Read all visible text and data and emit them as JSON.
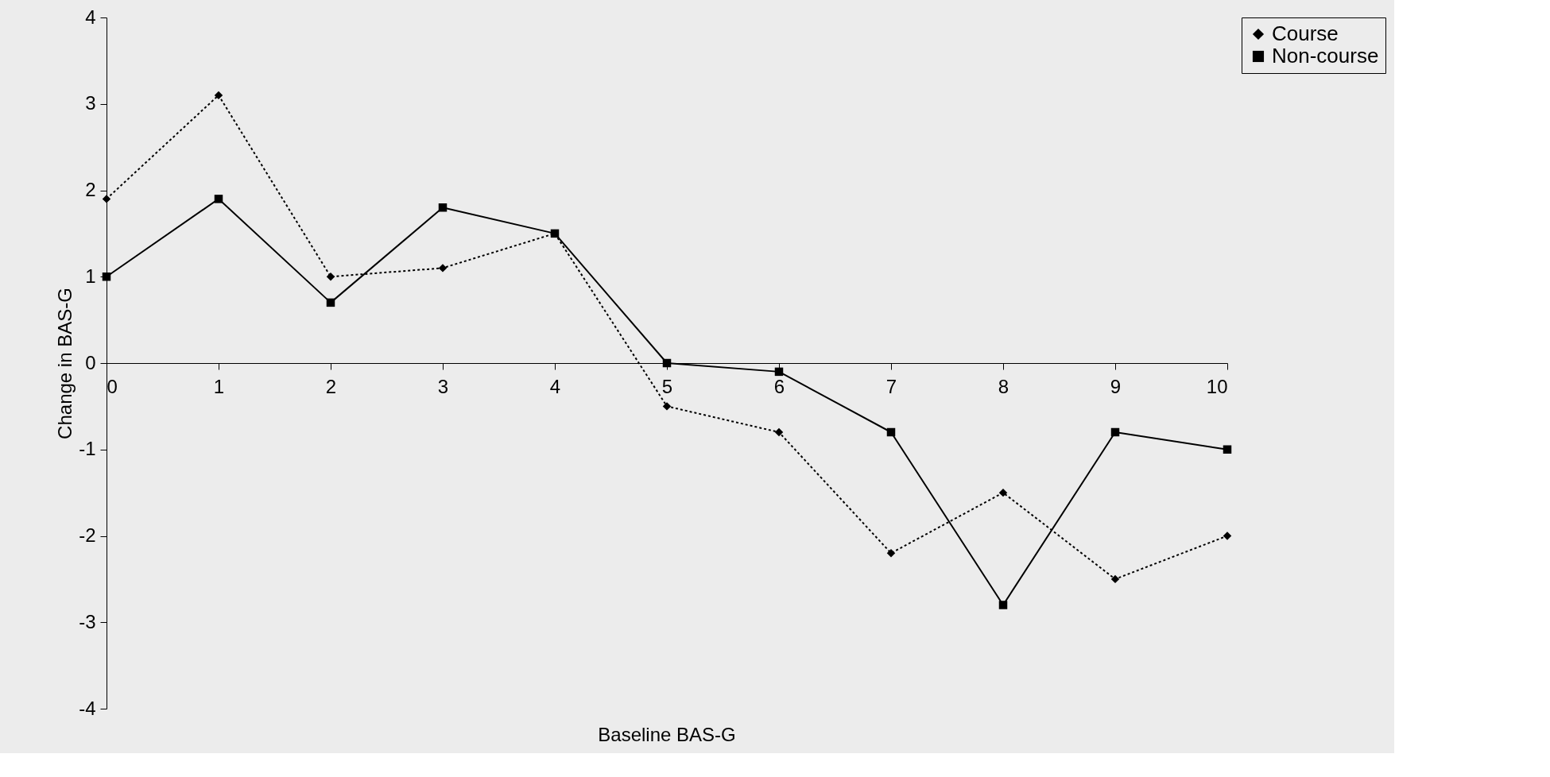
{
  "chart_data": {
    "type": "line",
    "xlabel": "Baseline BAS-G",
    "ylabel": "Change in BAS-G",
    "x": [
      0,
      1,
      2,
      3,
      4,
      5,
      6,
      7,
      8,
      9,
      10
    ],
    "series": [
      {
        "name": "Course",
        "color": "#000000",
        "marker": "diamond",
        "line_style": "dotted",
        "values": [
          1.9,
          3.1,
          1.0,
          1.1,
          1.5,
          -0.5,
          -0.8,
          -2.2,
          -1.5,
          -2.5,
          -2.0
        ]
      },
      {
        "name": "Non-course",
        "color": "#000000",
        "marker": "square",
        "line_style": "solid",
        "values": [
          1.0,
          1.9,
          0.7,
          1.8,
          1.5,
          0.0,
          -0.1,
          -0.8,
          -2.8,
          -0.8,
          -1.0
        ]
      }
    ],
    "xlim": [
      0,
      10
    ],
    "xticks": [
      0,
      1,
      2,
      3,
      4,
      5,
      6,
      7,
      8,
      9,
      10
    ],
    "ylim": [
      -4,
      4
    ],
    "yticks": [
      -4,
      -3,
      -2,
      -1,
      0,
      1,
      2,
      3,
      4
    ],
    "grid": false,
    "legend": "right"
  }
}
